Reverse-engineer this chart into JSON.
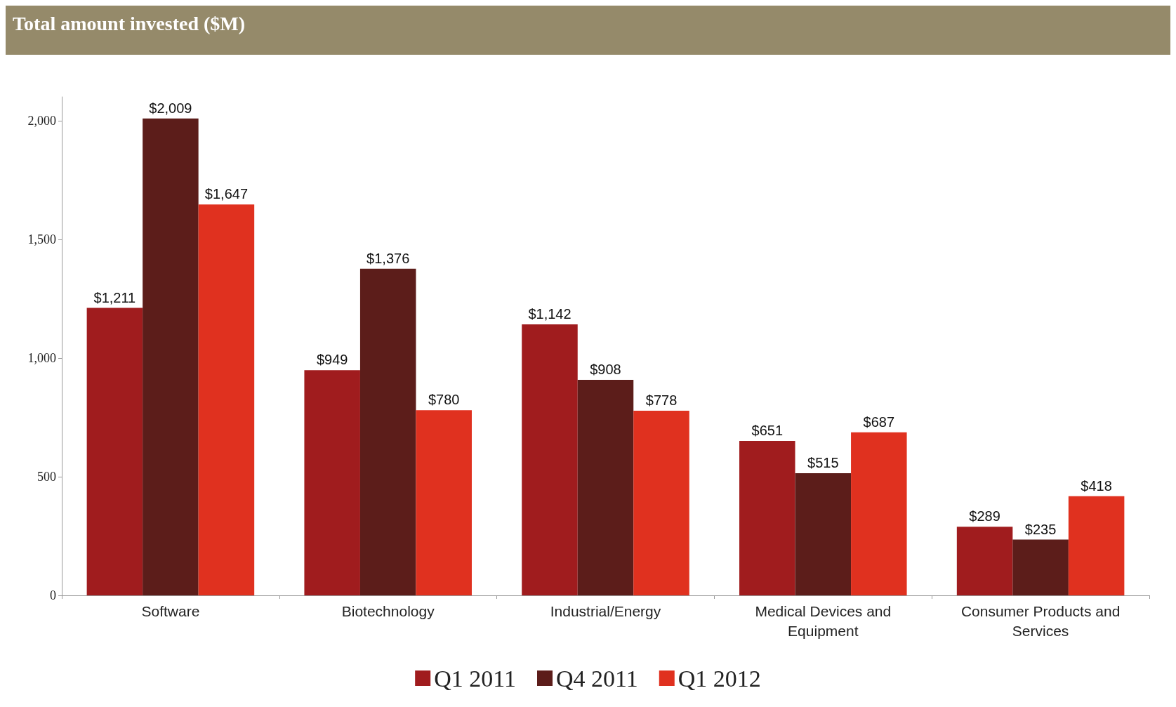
{
  "chart_data": {
    "type": "bar",
    "title": "Total amount invested ($M)",
    "categories": [
      "Software",
      "Biotechnology",
      "Industrial/Energy",
      "Medical Devices and\nEquipment",
      "Consumer Products and\nServices"
    ],
    "series": [
      {
        "name": "Q1 2011",
        "color": "#a01c1e",
        "values": [
          1211,
          949,
          1142,
          651,
          289
        ],
        "value_labels": [
          "$1,211",
          "$949",
          "$1,142",
          "$651",
          "$289"
        ]
      },
      {
        "name": "Q4 2011",
        "color": "#5c1d1a",
        "values": [
          2009,
          1376,
          908,
          515,
          235
        ],
        "value_labels": [
          "$2,009",
          "$1,376",
          "$908",
          "$515",
          "$235"
        ]
      },
      {
        "name": "Q1 2012",
        "color": "#e0311f",
        "values": [
          1647,
          780,
          778,
          687,
          418
        ],
        "value_labels": [
          "$1,647",
          "$780",
          "$778",
          "$687",
          "$418"
        ]
      }
    ],
    "ylim": [
      0,
      2100
    ],
    "yticks": [
      0,
      500,
      {
        "value": 1000,
        "label": "1,000"
      },
      {
        "value": 1500,
        "label": "1,500"
      },
      {
        "value": 2000,
        "label": "2,000"
      }
    ],
    "grid": false,
    "legend": "bottom"
  }
}
